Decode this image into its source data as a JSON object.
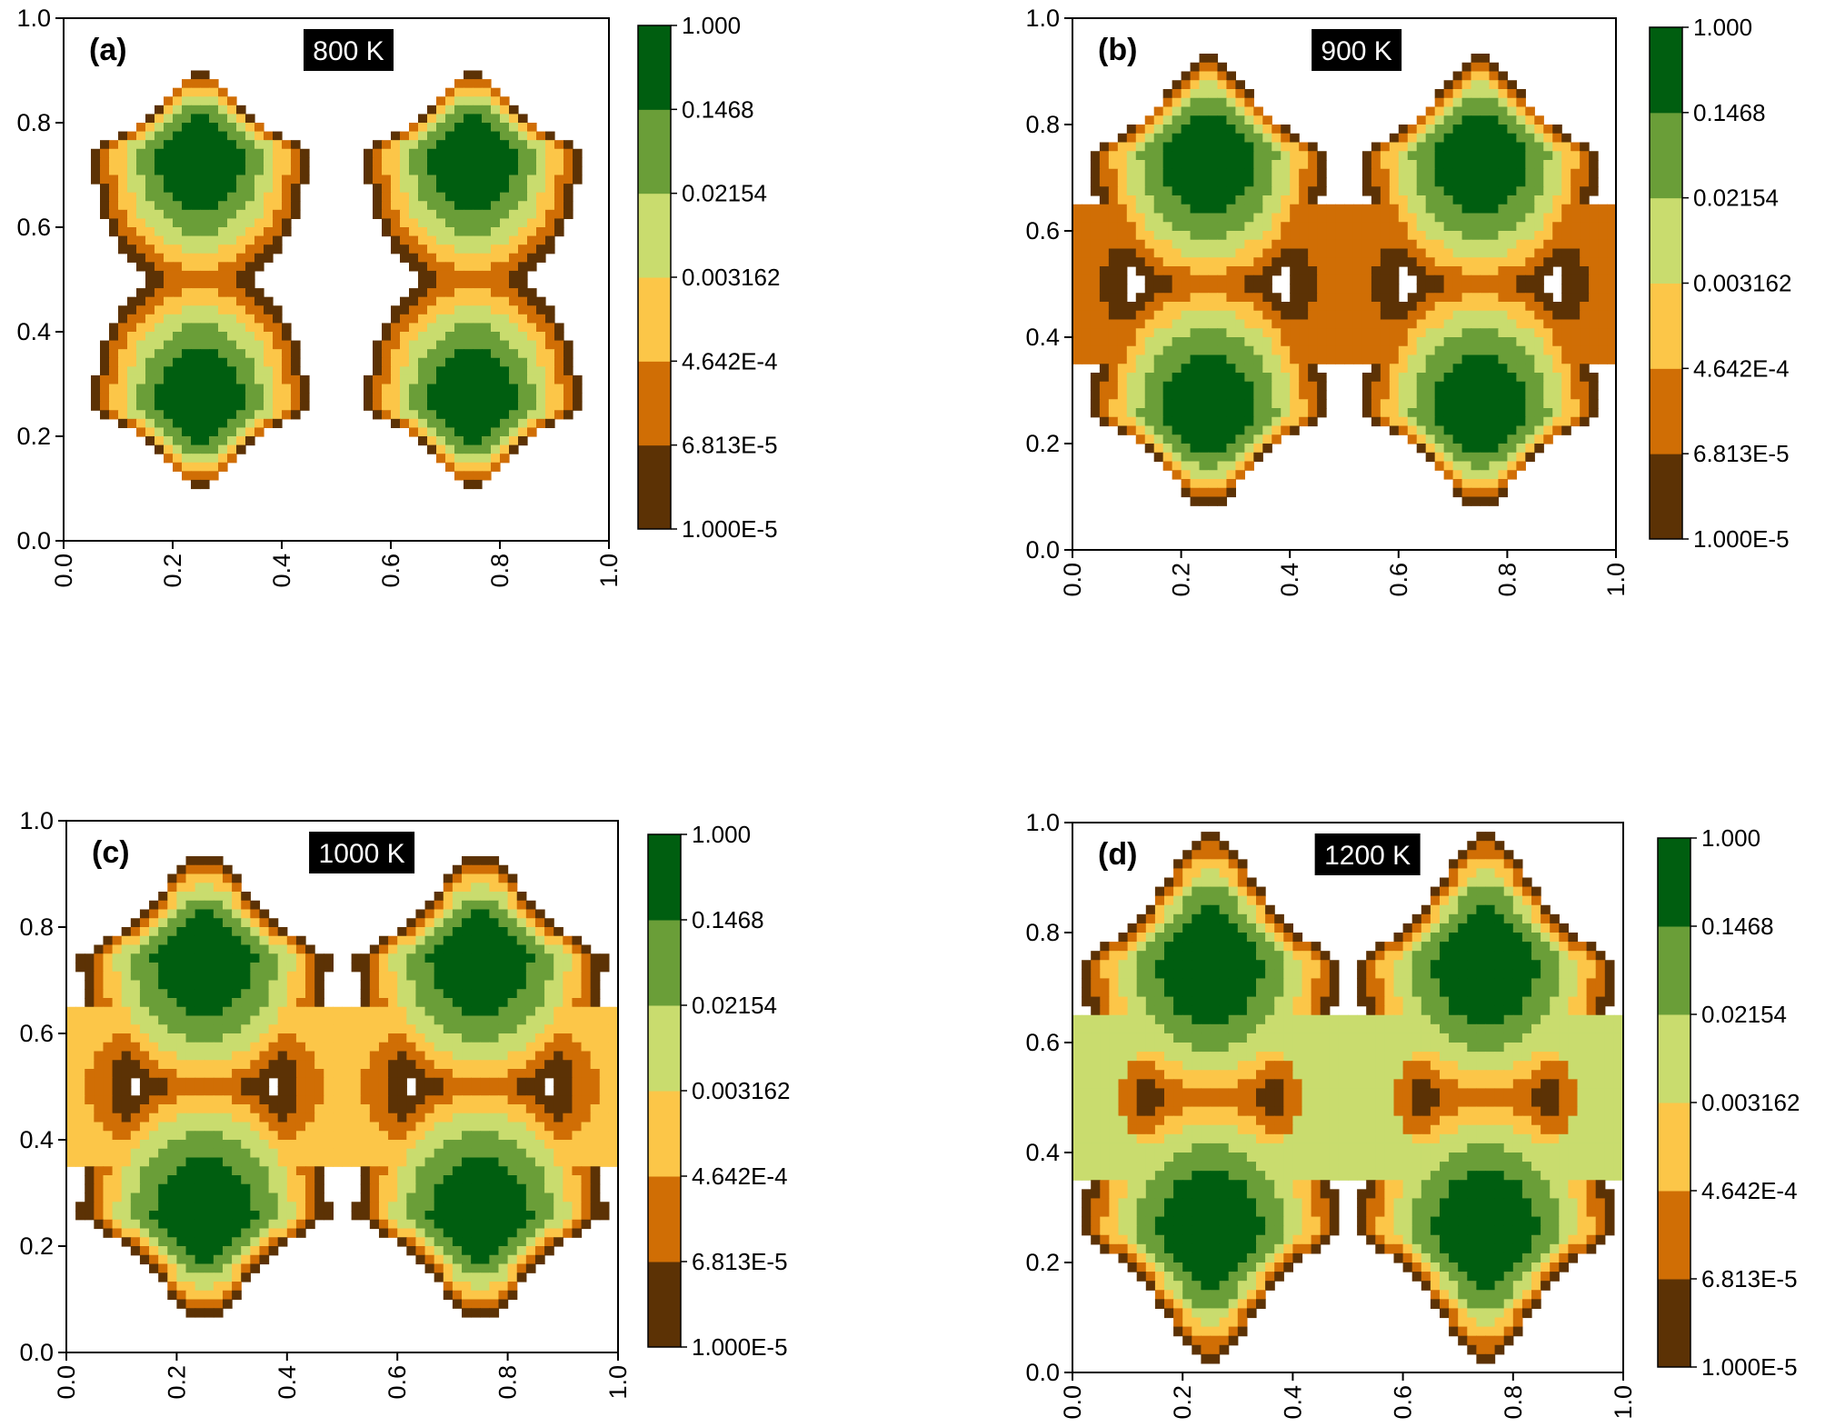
{
  "figure": {
    "panel_count": 4
  },
  "colors": {
    "levels": [
      "#5c3205",
      "#d06e05",
      "#fcc648",
      "#c9dc6e",
      "#6a9e38",
      "#005e10"
    ],
    "axis": "#000000",
    "temp_box": "#000000",
    "temp_text": "#ffffff"
  },
  "chart_data": [
    {
      "type": "heatmap",
      "subtype": "filled-contour",
      "panel_label": "(a)",
      "temperature_label": "800 K",
      "xlabel": "",
      "ylabel": "",
      "xlim": [
        0.0,
        1.0
      ],
      "ylim": [
        0.0,
        1.0
      ],
      "x_ticks": [
        "0.0",
        "0.2",
        "0.4",
        "0.6",
        "0.8",
        "1.0"
      ],
      "y_ticks": [
        "0.0",
        "0.2",
        "0.4",
        "0.6",
        "0.8",
        "1.0"
      ],
      "colorbar": {
        "scale": "log",
        "range": [
          1e-05,
          1.0
        ],
        "levels": [
          "1.000E-5",
          "6.813E-5",
          "4.642E-4",
          "0.003162",
          "0.02154",
          "0.1468",
          "1.000"
        ]
      },
      "peaks": [
        {
          "x": 0.25,
          "y": 0.75,
          "value": 1.0
        },
        {
          "x": 0.75,
          "y": 0.75,
          "value": 1.0
        },
        {
          "x": 0.25,
          "y": 0.25,
          "value": 1.0
        },
        {
          "x": 0.75,
          "y": 0.25,
          "value": 1.0
        }
      ],
      "lobe_extent": {
        "x_half_width": 0.21,
        "top": 0.91,
        "bottom": 0.09
      },
      "lobe_shape": "triangular",
      "middle_band_level": 0,
      "hole_extent": {
        "x_half_width": 0.0,
        "y_half_height": 0.0
      }
    },
    {
      "type": "heatmap",
      "subtype": "filled-contour",
      "panel_label": "(b)",
      "temperature_label": "900 K",
      "xlabel": "",
      "ylabel": "",
      "xlim": [
        0.0,
        1.0
      ],
      "ylim": [
        0.0,
        1.0
      ],
      "x_ticks": [
        "0.0",
        "0.2",
        "0.4",
        "0.6",
        "0.8",
        "1.0"
      ],
      "y_ticks": [
        "0.0",
        "0.2",
        "0.4",
        "0.6",
        "0.8",
        "1.0"
      ],
      "colorbar": {
        "scale": "log",
        "range": [
          1e-05,
          1.0
        ],
        "levels": [
          "1.000E-5",
          "6.813E-5",
          "4.642E-4",
          "0.003162",
          "0.02154",
          "0.1468",
          "1.000"
        ]
      },
      "peaks": [
        {
          "x": 0.25,
          "y": 0.75,
          "value": 1.0
        },
        {
          "x": 0.75,
          "y": 0.75,
          "value": 1.0
        },
        {
          "x": 0.25,
          "y": 0.25,
          "value": 1.0
        },
        {
          "x": 0.75,
          "y": 0.25,
          "value": 1.0
        }
      ],
      "lobe_extent": {
        "x_half_width": 0.23,
        "top": 0.94,
        "bottom": 0.07
      },
      "lobe_shape": "triangular",
      "middle_band_level": 2,
      "hole_extent": {
        "x_half_width": 0.15,
        "y_half_height": 0.09
      }
    },
    {
      "type": "heatmap",
      "subtype": "filled-contour",
      "panel_label": "(c)",
      "temperature_label": "1000 K",
      "xlabel": "",
      "ylabel": "",
      "xlim": [
        0.0,
        1.0
      ],
      "ylim": [
        0.0,
        1.0
      ],
      "x_ticks": [
        "0.0",
        "0.2",
        "0.4",
        "0.6",
        "0.8",
        "1.0"
      ],
      "y_ticks": [
        "0.0",
        "0.2",
        "0.4",
        "0.6",
        "0.8",
        "1.0"
      ],
      "colorbar": {
        "scale": "log",
        "range": [
          1e-05,
          1.0
        ],
        "levels": [
          "1.000E-5",
          "6.813E-5",
          "4.642E-4",
          "0.003162",
          "0.02154",
          "0.1468",
          "1.000"
        ]
      },
      "peaks": [
        {
          "x": 0.25,
          "y": 0.75,
          "value": 1.0
        },
        {
          "x": 0.75,
          "y": 0.75,
          "value": 1.0
        },
        {
          "x": 0.25,
          "y": 0.25,
          "value": 1.0
        },
        {
          "x": 0.75,
          "y": 0.25,
          "value": 1.0
        }
      ],
      "lobe_extent": {
        "x_half_width": 0.24,
        "top": 0.95,
        "bottom": 0.05
      },
      "lobe_shape": "triangular",
      "middle_band_level": 3,
      "hole_extent": {
        "x_half_width": 0.13,
        "y_half_height": 0.08
      }
    },
    {
      "type": "heatmap",
      "subtype": "filled-contour",
      "panel_label": "(d)",
      "temperature_label": "1200 K",
      "xlabel": "",
      "ylabel": "",
      "xlim": [
        0.0,
        1.0
      ],
      "ylim": [
        0.0,
        1.0
      ],
      "x_ticks": [
        "0.0",
        "0.2",
        "0.4",
        "0.6",
        "0.8",
        "1.0"
      ],
      "y_ticks": [
        "0.0",
        "0.2",
        "0.4",
        "0.6",
        "0.8",
        "1.0"
      ],
      "colorbar": {
        "scale": "log",
        "range": [
          1e-05,
          1.0
        ],
        "levels": [
          "1.000E-5",
          "6.813E-5",
          "4.642E-4",
          "0.003162",
          "0.02154",
          "0.1468",
          "1.000"
        ]
      },
      "peaks": [
        {
          "x": 0.25,
          "y": 0.75,
          "value": 1.0
        },
        {
          "x": 0.75,
          "y": 0.75,
          "value": 1.0
        },
        {
          "x": 0.25,
          "y": 0.25,
          "value": 1.0
        },
        {
          "x": 0.75,
          "y": 0.25,
          "value": 1.0
        }
      ],
      "lobe_extent": {
        "x_half_width": 0.25,
        "top": 1.0,
        "bottom": 0.0
      },
      "lobe_shape": "triangular",
      "middle_band_level": 4,
      "hole_extent": {
        "x_half_width": 0.1,
        "y_half_height": 0.07
      }
    }
  ]
}
